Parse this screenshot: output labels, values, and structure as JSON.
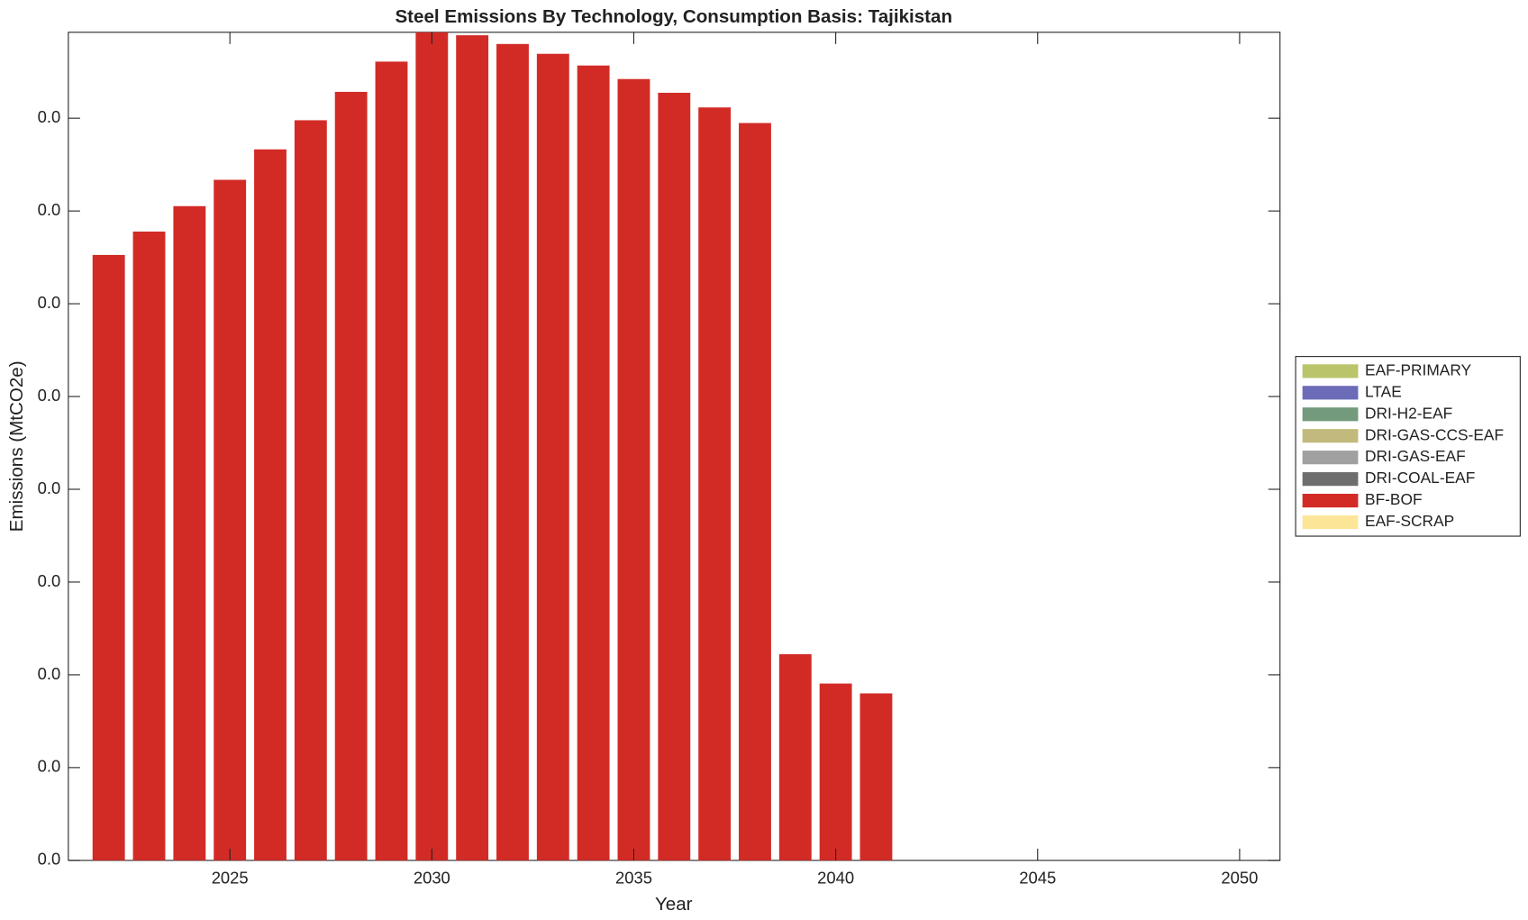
{
  "chart_data": {
    "type": "bar",
    "stacked": true,
    "title": "Steel Emissions By Technology, Consumption Basis: Tajikistan",
    "x_label": "Year",
    "y_label": "Emissions (MtCO2e)",
    "x": [
      2022,
      2023,
      2024,
      2025,
      2026,
      2027,
      2028,
      2029,
      2030,
      2031,
      2032,
      2033,
      2034,
      2035,
      2036,
      2037,
      2038,
      2039,
      2040,
      2041
    ],
    "xlim": [
      2021,
      2051
    ],
    "xticks": [
      2025,
      2030,
      2035,
      2040,
      2045,
      2050
    ],
    "ylim": [
      0,
      0.04463
    ],
    "yticks": [
      {
        "value": 0,
        "label": "0.0"
      },
      {
        "value": 0.005,
        "label": "0.0"
      },
      {
        "value": 0.01,
        "label": "0.0"
      },
      {
        "value": 0.015,
        "label": "0.0"
      },
      {
        "value": 0.02,
        "label": "0.0"
      },
      {
        "value": 0.025,
        "label": "0.0"
      },
      {
        "value": 0.03,
        "label": "0.0"
      },
      {
        "value": 0.035,
        "label": "0.0"
      },
      {
        "value": 0.04,
        "label": "0.0"
      }
    ],
    "legend_position": "outside-right",
    "series": [
      {
        "name": "EAF-PRIMARY",
        "color": "#bac46a",
        "values": [
          0,
          0,
          0,
          0,
          0,
          0,
          0,
          0,
          0,
          0,
          0,
          0,
          0,
          0,
          0,
          0,
          0,
          0,
          0,
          0
        ]
      },
      {
        "name": "LTAE",
        "color": "#6c6bb8",
        "values": [
          0,
          0,
          0,
          0,
          0,
          0,
          0,
          0,
          0,
          0,
          0,
          0,
          0,
          0,
          0,
          0,
          0,
          0,
          0,
          0
        ]
      },
      {
        "name": "DRI-H2-EAF",
        "color": "#739a7c",
        "values": [
          0,
          0,
          0,
          0,
          0,
          0,
          0,
          0,
          0,
          0,
          0,
          0,
          0,
          0,
          0,
          0,
          0,
          0,
          0,
          0
        ]
      },
      {
        "name": "DRI-GAS-CCS-EAF",
        "color": "#c2ba7c",
        "values": [
          0,
          0,
          0,
          0,
          0,
          0,
          0,
          0,
          0,
          0,
          0,
          0,
          0,
          0,
          0,
          0,
          0,
          0,
          0,
          0
        ]
      },
      {
        "name": "DRI-GAS-EAF",
        "color": "#a0a0a0",
        "values": [
          0,
          0,
          0,
          0,
          0,
          0,
          0,
          0,
          0,
          0,
          0,
          0,
          0,
          0,
          0,
          0,
          0,
          0,
          0,
          0
        ]
      },
      {
        "name": "DRI-COAL-EAF",
        "color": "#6e6e6e",
        "values": [
          0,
          0,
          0,
          0,
          0,
          0,
          0,
          0,
          0,
          0,
          0,
          0,
          0,
          0,
          0,
          0,
          0,
          0,
          0,
          0
        ]
      },
      {
        "name": "BF-BOF",
        "color": "#d22b26",
        "values": [
          0.03263,
          0.03389,
          0.03526,
          0.03668,
          0.03832,
          0.03989,
          0.04142,
          0.04305,
          0.04463,
          0.04447,
          0.044,
          0.04347,
          0.04284,
          0.04211,
          0.04137,
          0.04058,
          0.03974,
          0.01111,
          0.00953,
          0.009
        ]
      },
      {
        "name": "EAF-SCRAP",
        "color": "#fde598",
        "values": [
          0,
          0,
          0,
          0,
          0,
          0,
          0,
          0,
          0,
          0,
          0,
          0,
          0,
          0,
          0,
          0,
          0,
          0,
          0,
          0
        ]
      }
    ]
  }
}
